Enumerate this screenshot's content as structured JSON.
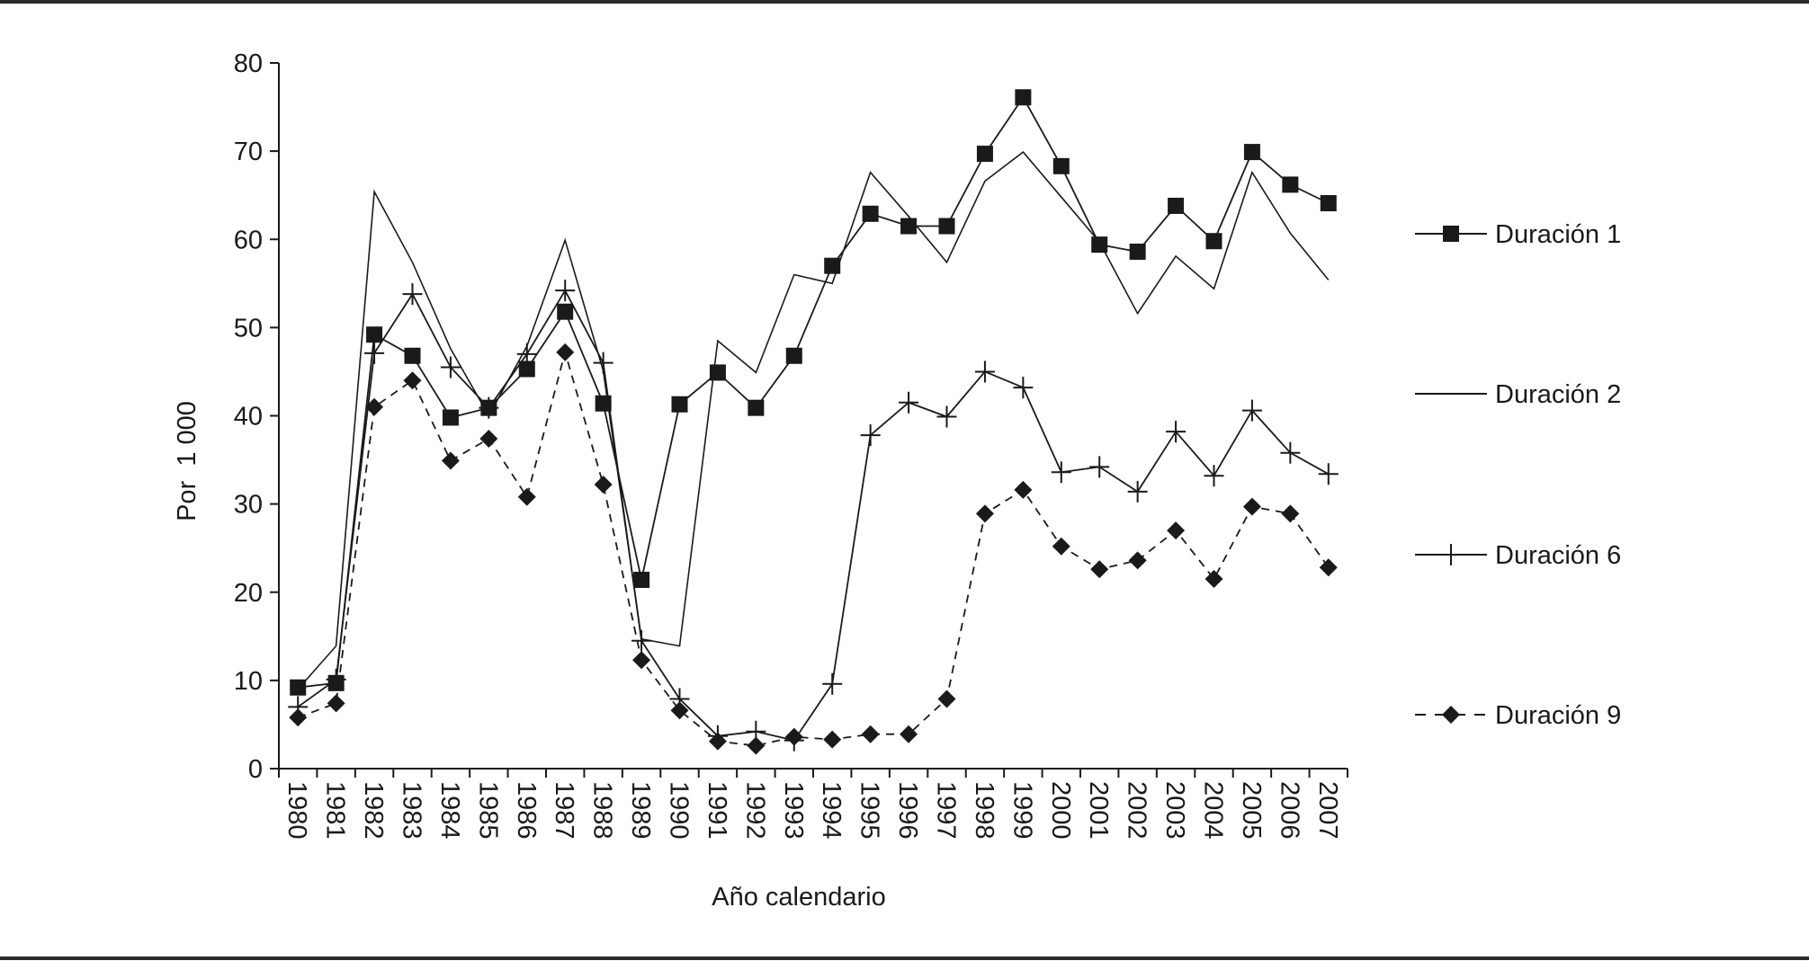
{
  "chart_data": {
    "type": "line",
    "title": "",
    "xlabel": "Año calendario",
    "ylabel": "Por  1 000",
    "ylim": [
      0,
      80
    ],
    "yticks": [
      0,
      10,
      20,
      30,
      40,
      50,
      60,
      70,
      80
    ],
    "grid": false,
    "legend_position": "right",
    "categories": [
      "1980",
      "1981",
      "1982",
      "1983",
      "1984",
      "1985",
      "1986",
      "1987",
      "1988",
      "1989",
      "1990",
      "1991",
      "1992",
      "1993",
      "1994",
      "1995",
      "1996",
      "1997",
      "1998",
      "1999",
      "2000",
      "2001",
      "2002",
      "2003",
      "2004",
      "2005",
      "2006",
      "2007"
    ],
    "series": [
      {
        "name": "Duración 1",
        "marker": "square",
        "dash": "solid",
        "values": [
          9.2,
          9.7,
          49.2,
          46.8,
          39.8,
          40.9,
          45.3,
          51.8,
          41.4,
          21.4,
          41.3,
          44.9,
          40.9,
          46.8,
          57.0,
          62.9,
          61.5,
          61.5,
          69.7,
          76.1,
          68.3,
          59.4,
          58.6,
          63.8,
          59.8,
          69.9,
          66.2,
          64.1
        ]
      },
      {
        "name": "Duración 2",
        "marker": "none",
        "dash": "solid",
        "values": [
          9.0,
          13.9,
          65.4,
          57.4,
          47.6,
          40.0,
          47.9,
          59.9,
          45.1,
          14.7,
          13.9,
          48.5,
          44.9,
          56.0,
          55.0,
          67.6,
          62.6,
          57.4,
          66.6,
          69.9,
          64.8,
          59.7,
          51.6,
          58.1,
          54.4,
          67.6,
          60.7,
          55.4
        ]
      },
      {
        "name": "Duración 6",
        "marker": "plus",
        "dash": "solid",
        "values": [
          7.0,
          10.1,
          47.1,
          53.8,
          45.5,
          40.9,
          47.0,
          54.2,
          46.0,
          14.5,
          7.9,
          3.7,
          4.2,
          3.2,
          9.6,
          37.8,
          41.5,
          39.9,
          45.0,
          43.2,
          33.6,
          34.2,
          31.4,
          38.2,
          33.2,
          40.6,
          35.8,
          33.4
        ]
      },
      {
        "name": "Duración 9",
        "marker": "diamond",
        "dash": "dashed",
        "values": [
          5.8,
          7.4,
          41.0,
          44.0,
          34.9,
          37.4,
          30.8,
          47.2,
          32.2,
          12.3,
          6.6,
          3.1,
          2.6,
          3.6,
          3.3,
          3.9,
          3.9,
          7.9,
          28.9,
          31.6,
          25.2,
          22.6,
          23.6,
          27.0,
          21.5,
          29.7,
          28.9,
          22.8
        ]
      }
    ]
  }
}
